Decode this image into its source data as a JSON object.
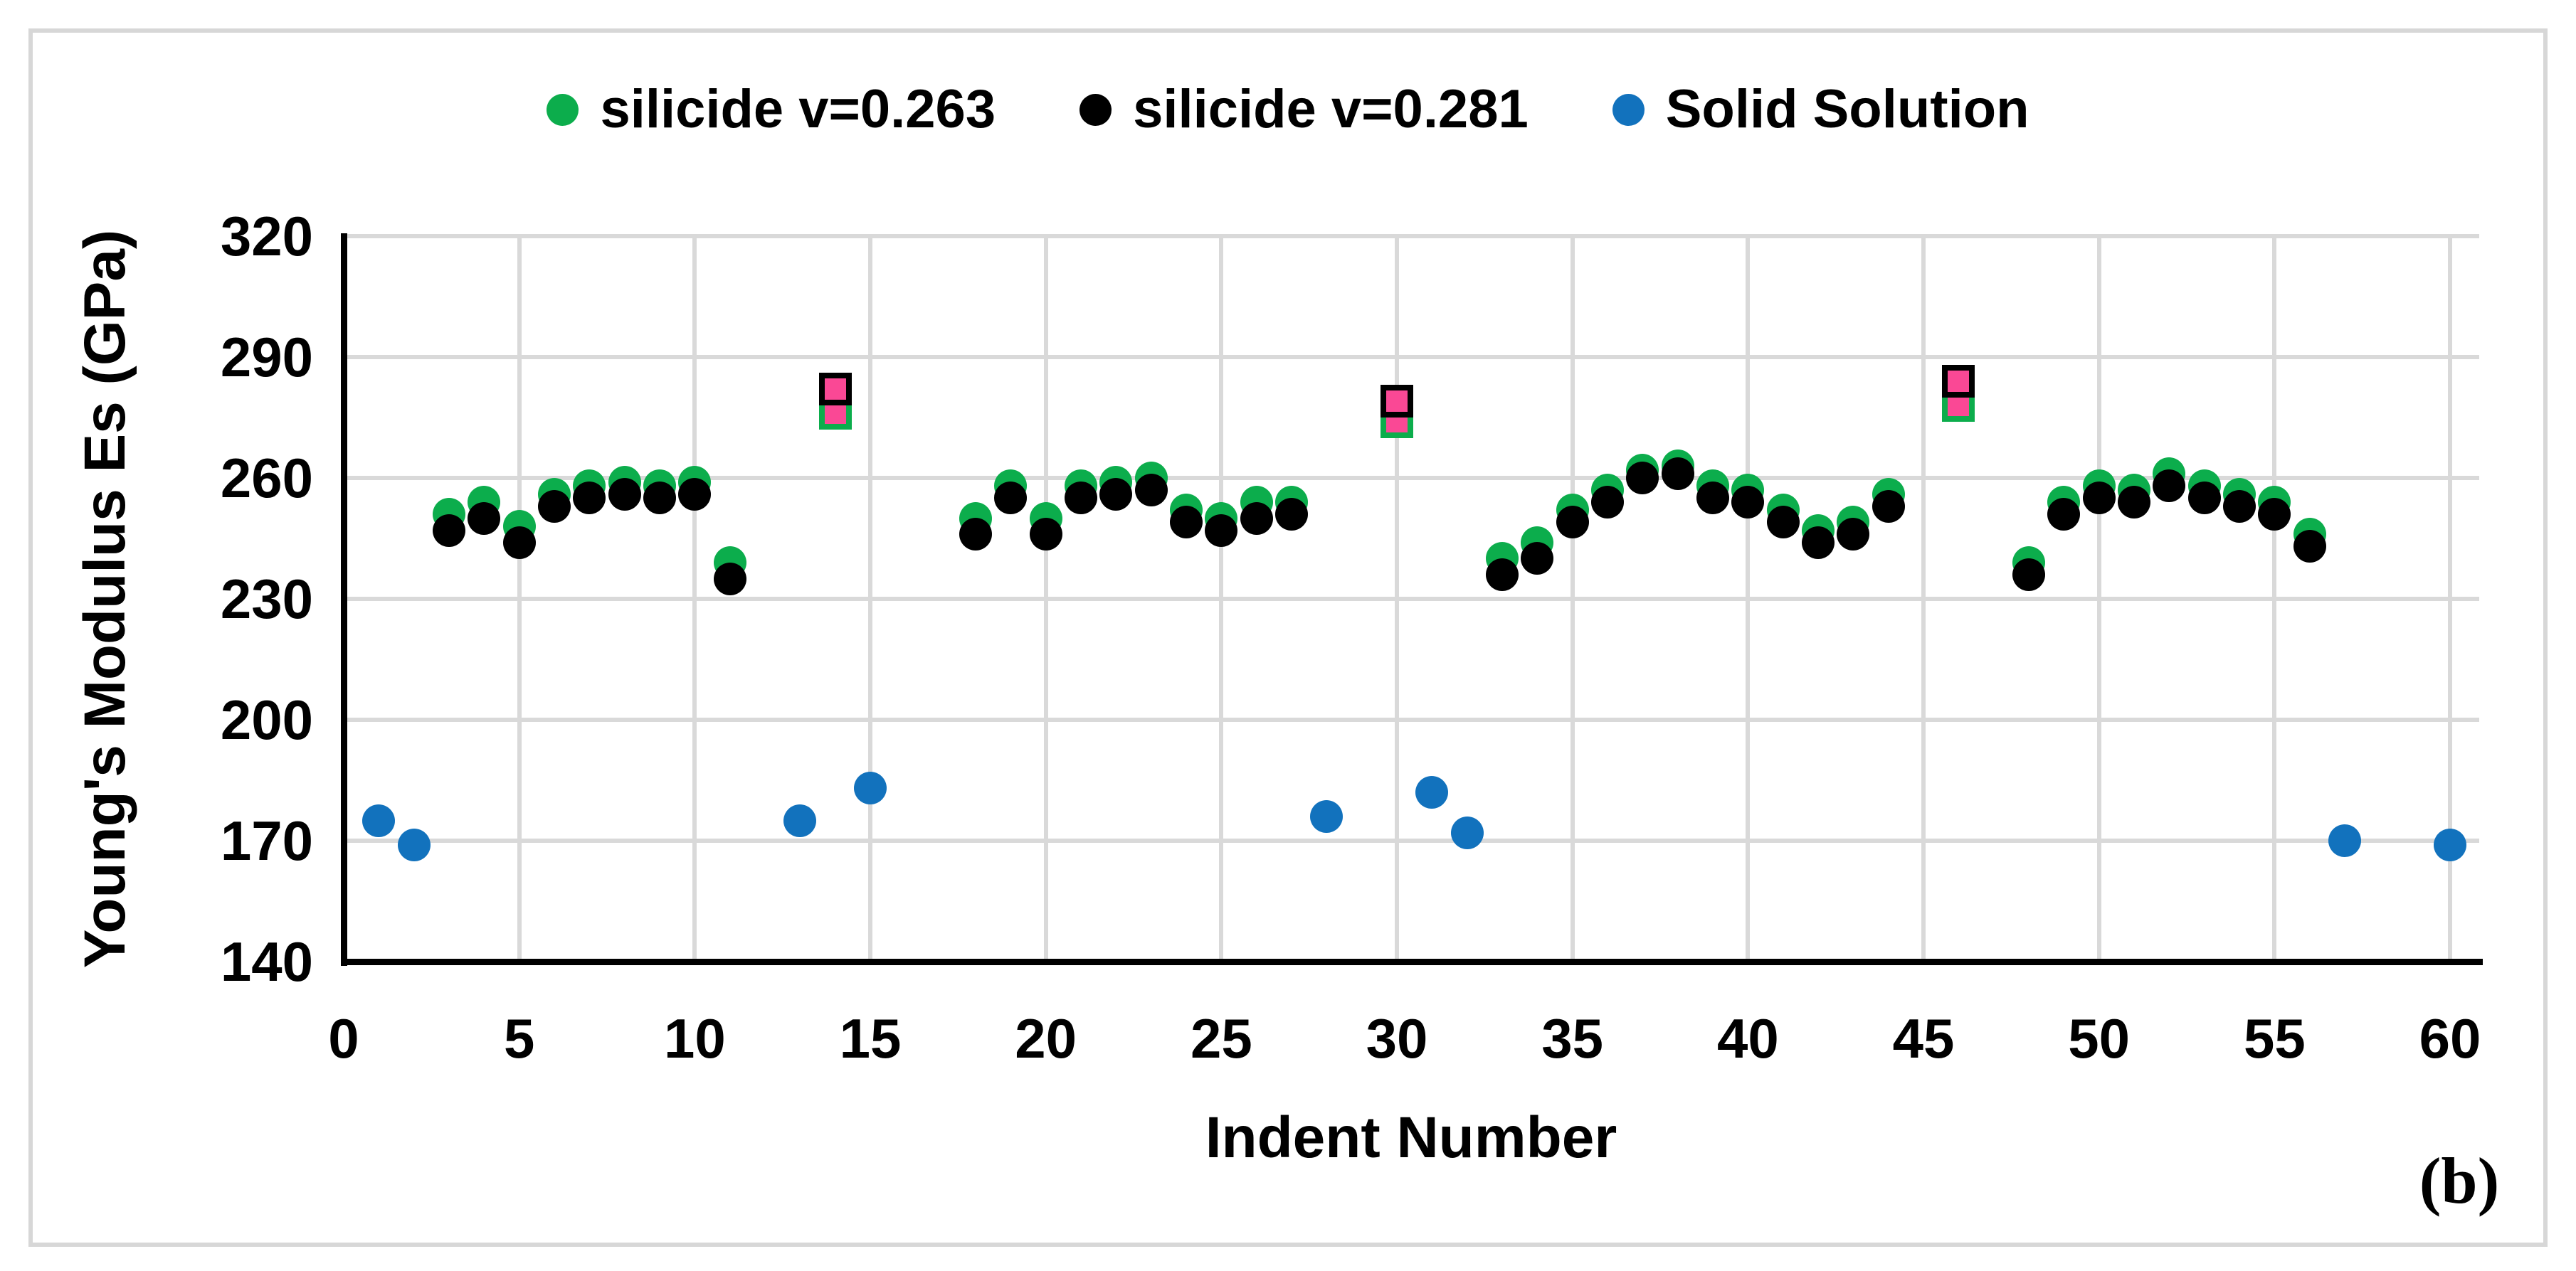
{
  "figure": {
    "panel_label": "(b)"
  },
  "legend": [
    {
      "label": "silicide v=0.263",
      "color": "#0cad4c",
      "marker": "circle"
    },
    {
      "label": "silicide v=0.281",
      "color": "#000000",
      "marker": "circle"
    },
    {
      "label": "Solid Solution",
      "color": "#1272bd",
      "marker": "circle"
    }
  ],
  "chart_data": {
    "type": "scatter",
    "title": "",
    "xlabel": "Indent Number",
    "ylabel": "Young's Modulus Es (GPa)",
    "xlim": [
      0,
      61
    ],
    "ylim": [
      140,
      320
    ],
    "x_ticks": [
      0,
      5,
      10,
      15,
      20,
      25,
      30,
      35,
      40,
      45,
      50,
      55,
      60
    ],
    "y_ticks": [
      140,
      170,
      200,
      230,
      260,
      290,
      320
    ],
    "grid": true,
    "legend_position": "top",
    "colors": {
      "green": "#0cad4c",
      "black": "#000000",
      "blue": "#1272bd",
      "pink": "#fa4895",
      "gridline": "#d9d9d9",
      "axis": "#000000"
    },
    "series": [
      {
        "name": "silicide v=0.263",
        "slug": "silicide-v0263",
        "marker": "circle",
        "color": "#0cad4c",
        "points": [
          [
            3,
            251
          ],
          [
            4,
            254
          ],
          [
            5,
            248
          ],
          [
            6,
            256
          ],
          [
            7,
            258
          ],
          [
            8,
            259
          ],
          [
            9,
            258
          ],
          [
            10,
            259
          ],
          [
            11,
            239
          ],
          [
            18,
            250
          ],
          [
            19,
            258
          ],
          [
            20,
            250
          ],
          [
            21,
            258
          ],
          [
            22,
            259
          ],
          [
            23,
            260
          ],
          [
            24,
            252
          ],
          [
            25,
            250
          ],
          [
            26,
            254
          ],
          [
            27,
            254
          ],
          [
            33,
            240
          ],
          [
            34,
            244
          ],
          [
            35,
            252
          ],
          [
            36,
            257
          ],
          [
            37,
            262
          ],
          [
            38,
            263
          ],
          [
            39,
            258
          ],
          [
            40,
            257
          ],
          [
            41,
            252
          ],
          [
            42,
            247
          ],
          [
            43,
            249
          ],
          [
            44,
            256
          ],
          [
            48,
            239
          ],
          [
            49,
            254
          ],
          [
            50,
            258
          ],
          [
            51,
            257
          ],
          [
            52,
            261
          ],
          [
            53,
            258
          ],
          [
            54,
            256
          ],
          [
            55,
            254
          ],
          [
            56,
            246
          ]
        ]
      },
      {
        "name": "silicide v=0.281",
        "slug": "silicide-v0281",
        "marker": "circle",
        "color": "#000000",
        "points": [
          [
            3,
            247
          ],
          [
            4,
            250
          ],
          [
            5,
            244
          ],
          [
            6,
            253
          ],
          [
            7,
            255
          ],
          [
            8,
            256
          ],
          [
            9,
            255
          ],
          [
            10,
            256
          ],
          [
            11,
            235
          ],
          [
            18,
            246
          ],
          [
            19,
            255
          ],
          [
            20,
            246
          ],
          [
            21,
            255
          ],
          [
            22,
            256
          ],
          [
            23,
            257
          ],
          [
            24,
            249
          ],
          [
            25,
            247
          ],
          [
            26,
            250
          ],
          [
            27,
            251
          ],
          [
            33,
            236
          ],
          [
            34,
            240
          ],
          [
            35,
            249
          ],
          [
            36,
            254
          ],
          [
            37,
            260
          ],
          [
            38,
            261
          ],
          [
            39,
            255
          ],
          [
            40,
            254
          ],
          [
            41,
            249
          ],
          [
            42,
            244
          ],
          [
            43,
            246
          ],
          [
            44,
            253
          ],
          [
            48,
            236
          ],
          [
            49,
            251
          ],
          [
            50,
            255
          ],
          [
            51,
            254
          ],
          [
            52,
            258
          ],
          [
            53,
            255
          ],
          [
            54,
            253
          ],
          [
            55,
            251
          ],
          [
            56,
            243
          ]
        ]
      },
      {
        "name": "Solid Solution",
        "slug": "solid-solution",
        "marker": "circle",
        "color": "#1272bd",
        "points": [
          [
            1,
            175
          ],
          [
            2,
            169
          ],
          [
            13,
            175
          ],
          [
            15,
            183
          ],
          [
            28,
            176
          ],
          [
            31,
            182
          ],
          [
            32,
            172
          ],
          [
            57,
            170
          ],
          [
            60,
            169
          ]
        ]
      },
      {
        "name": "silicide v=0.263 flagged",
        "slug": "silicide-v0263-flagged",
        "marker": "square",
        "fill": "#fa4895",
        "border": "#0cad4c",
        "points": [
          [
            14,
            276
          ],
          [
            30,
            274
          ],
          [
            46,
            278
          ]
        ]
      },
      {
        "name": "silicide v=0.281 flagged",
        "slug": "silicide-v0281-flagged",
        "marker": "square",
        "fill": "#fa4895",
        "border": "#000000",
        "points": [
          [
            14,
            282
          ],
          [
            30,
            279
          ],
          [
            46,
            284
          ]
        ]
      }
    ]
  }
}
